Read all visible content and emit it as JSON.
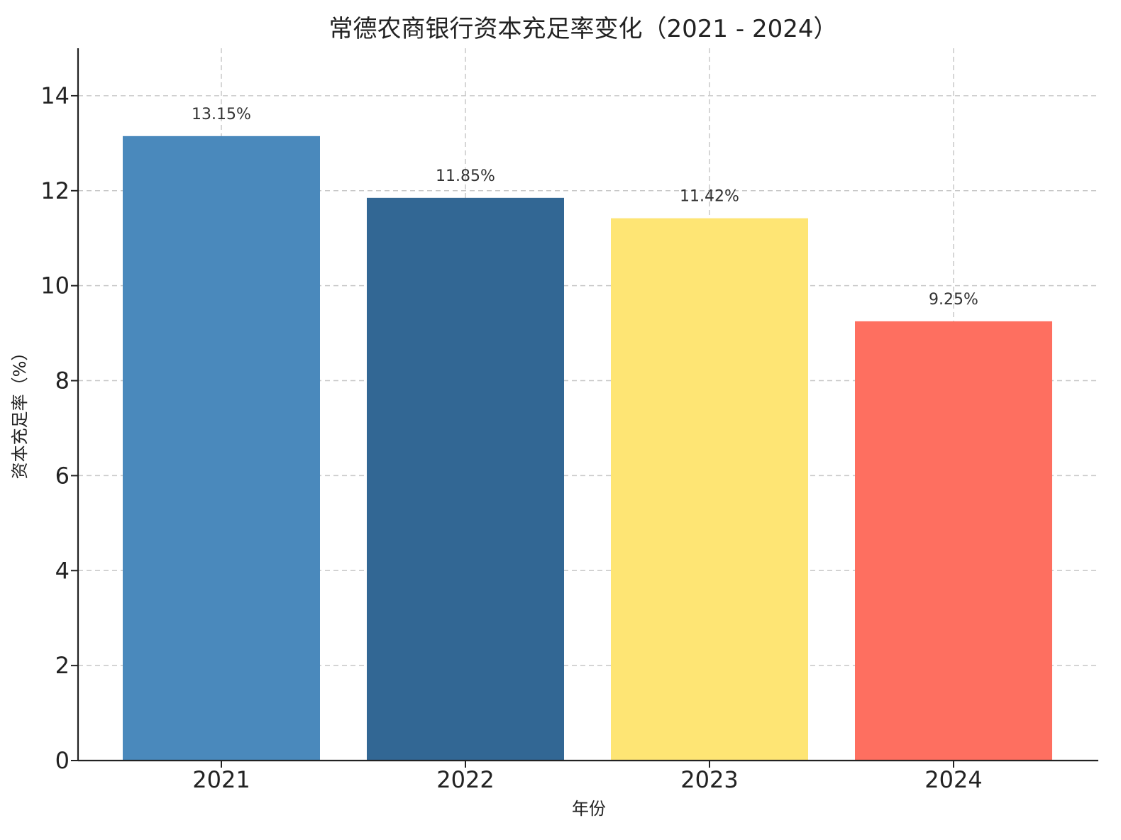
{
  "chart_data": {
    "type": "bar",
    "title": "常德农商银行资本充足率变化（2021 - 2024）",
    "xlabel": "年份",
    "ylabel": "资本充足率（%）",
    "categories": [
      "2021",
      "2022",
      "2023",
      "2024"
    ],
    "values": [
      13.15,
      11.85,
      11.42,
      9.25
    ],
    "data_labels": [
      "13.15%",
      "11.85%",
      "11.42%",
      "9.25%"
    ],
    "colors": [
      "#4A89BC",
      "#326794",
      "#FEE574",
      "#FE6F60"
    ],
    "yticks": [
      0,
      2,
      4,
      6,
      8,
      10,
      12,
      14
    ],
    "ylim": [
      0,
      15
    ],
    "grid": true,
    "legend": "none"
  }
}
